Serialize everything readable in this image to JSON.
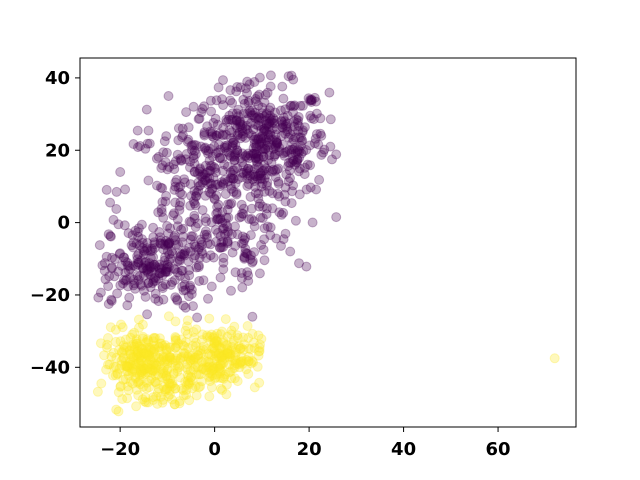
{
  "chart_data": {
    "type": "scatter",
    "title": "",
    "xlabel": "",
    "ylabel": "",
    "xlim": [
      -28.5,
      76.5
    ],
    "ylim": [
      -56.5,
      45.5
    ],
    "xticks": [
      -20,
      0,
      20,
      40,
      60
    ],
    "yticks": [
      -40,
      -20,
      0,
      20,
      40
    ],
    "grid": false,
    "legend": "none",
    "point_alpha": 0.3,
    "colors": {
      "class_0": "#440154",
      "class_1": "#fde725"
    },
    "clusters": [
      {
        "class": 0,
        "cx": 10,
        "cy": 22,
        "sx": 7,
        "sy": 8,
        "n": 430
      },
      {
        "class": 0,
        "cx": -2,
        "cy": 8,
        "sx": 9,
        "sy": 12,
        "n": 300
      },
      {
        "class": 0,
        "cx": -12,
        "cy": -12,
        "sx": 5,
        "sy": 6,
        "n": 180
      },
      {
        "class": 0,
        "cx": -20,
        "cy": -15,
        "sx": 3,
        "sy": 3,
        "n": 30
      },
      {
        "class": 0,
        "cx": 5,
        "cy": -6,
        "sx": 6,
        "sy": 5,
        "n": 50
      },
      {
        "class": 1,
        "cx": -14,
        "cy": -39,
        "sx": 5,
        "sy": 4.5,
        "n": 300
      },
      {
        "class": 1,
        "cx": 1,
        "cy": -37,
        "sx": 4.5,
        "sy": 4,
        "n": 220
      },
      {
        "class": 1,
        "cx": -9,
        "cy": -47,
        "sx": 3,
        "sy": 2.5,
        "n": 40
      }
    ],
    "extra_points": [
      {
        "class": 1,
        "x": 72,
        "y": -37.5
      },
      {
        "class": 1,
        "x": 2.5,
        "y": -47.5
      },
      {
        "class": 0,
        "x": 8,
        "y": -26
      },
      {
        "class": 0,
        "x": -20,
        "y": 14
      },
      {
        "class": 0,
        "x": 24.5,
        "y": 21
      },
      {
        "class": 0,
        "x": 16,
        "y": -8
      }
    ]
  }
}
